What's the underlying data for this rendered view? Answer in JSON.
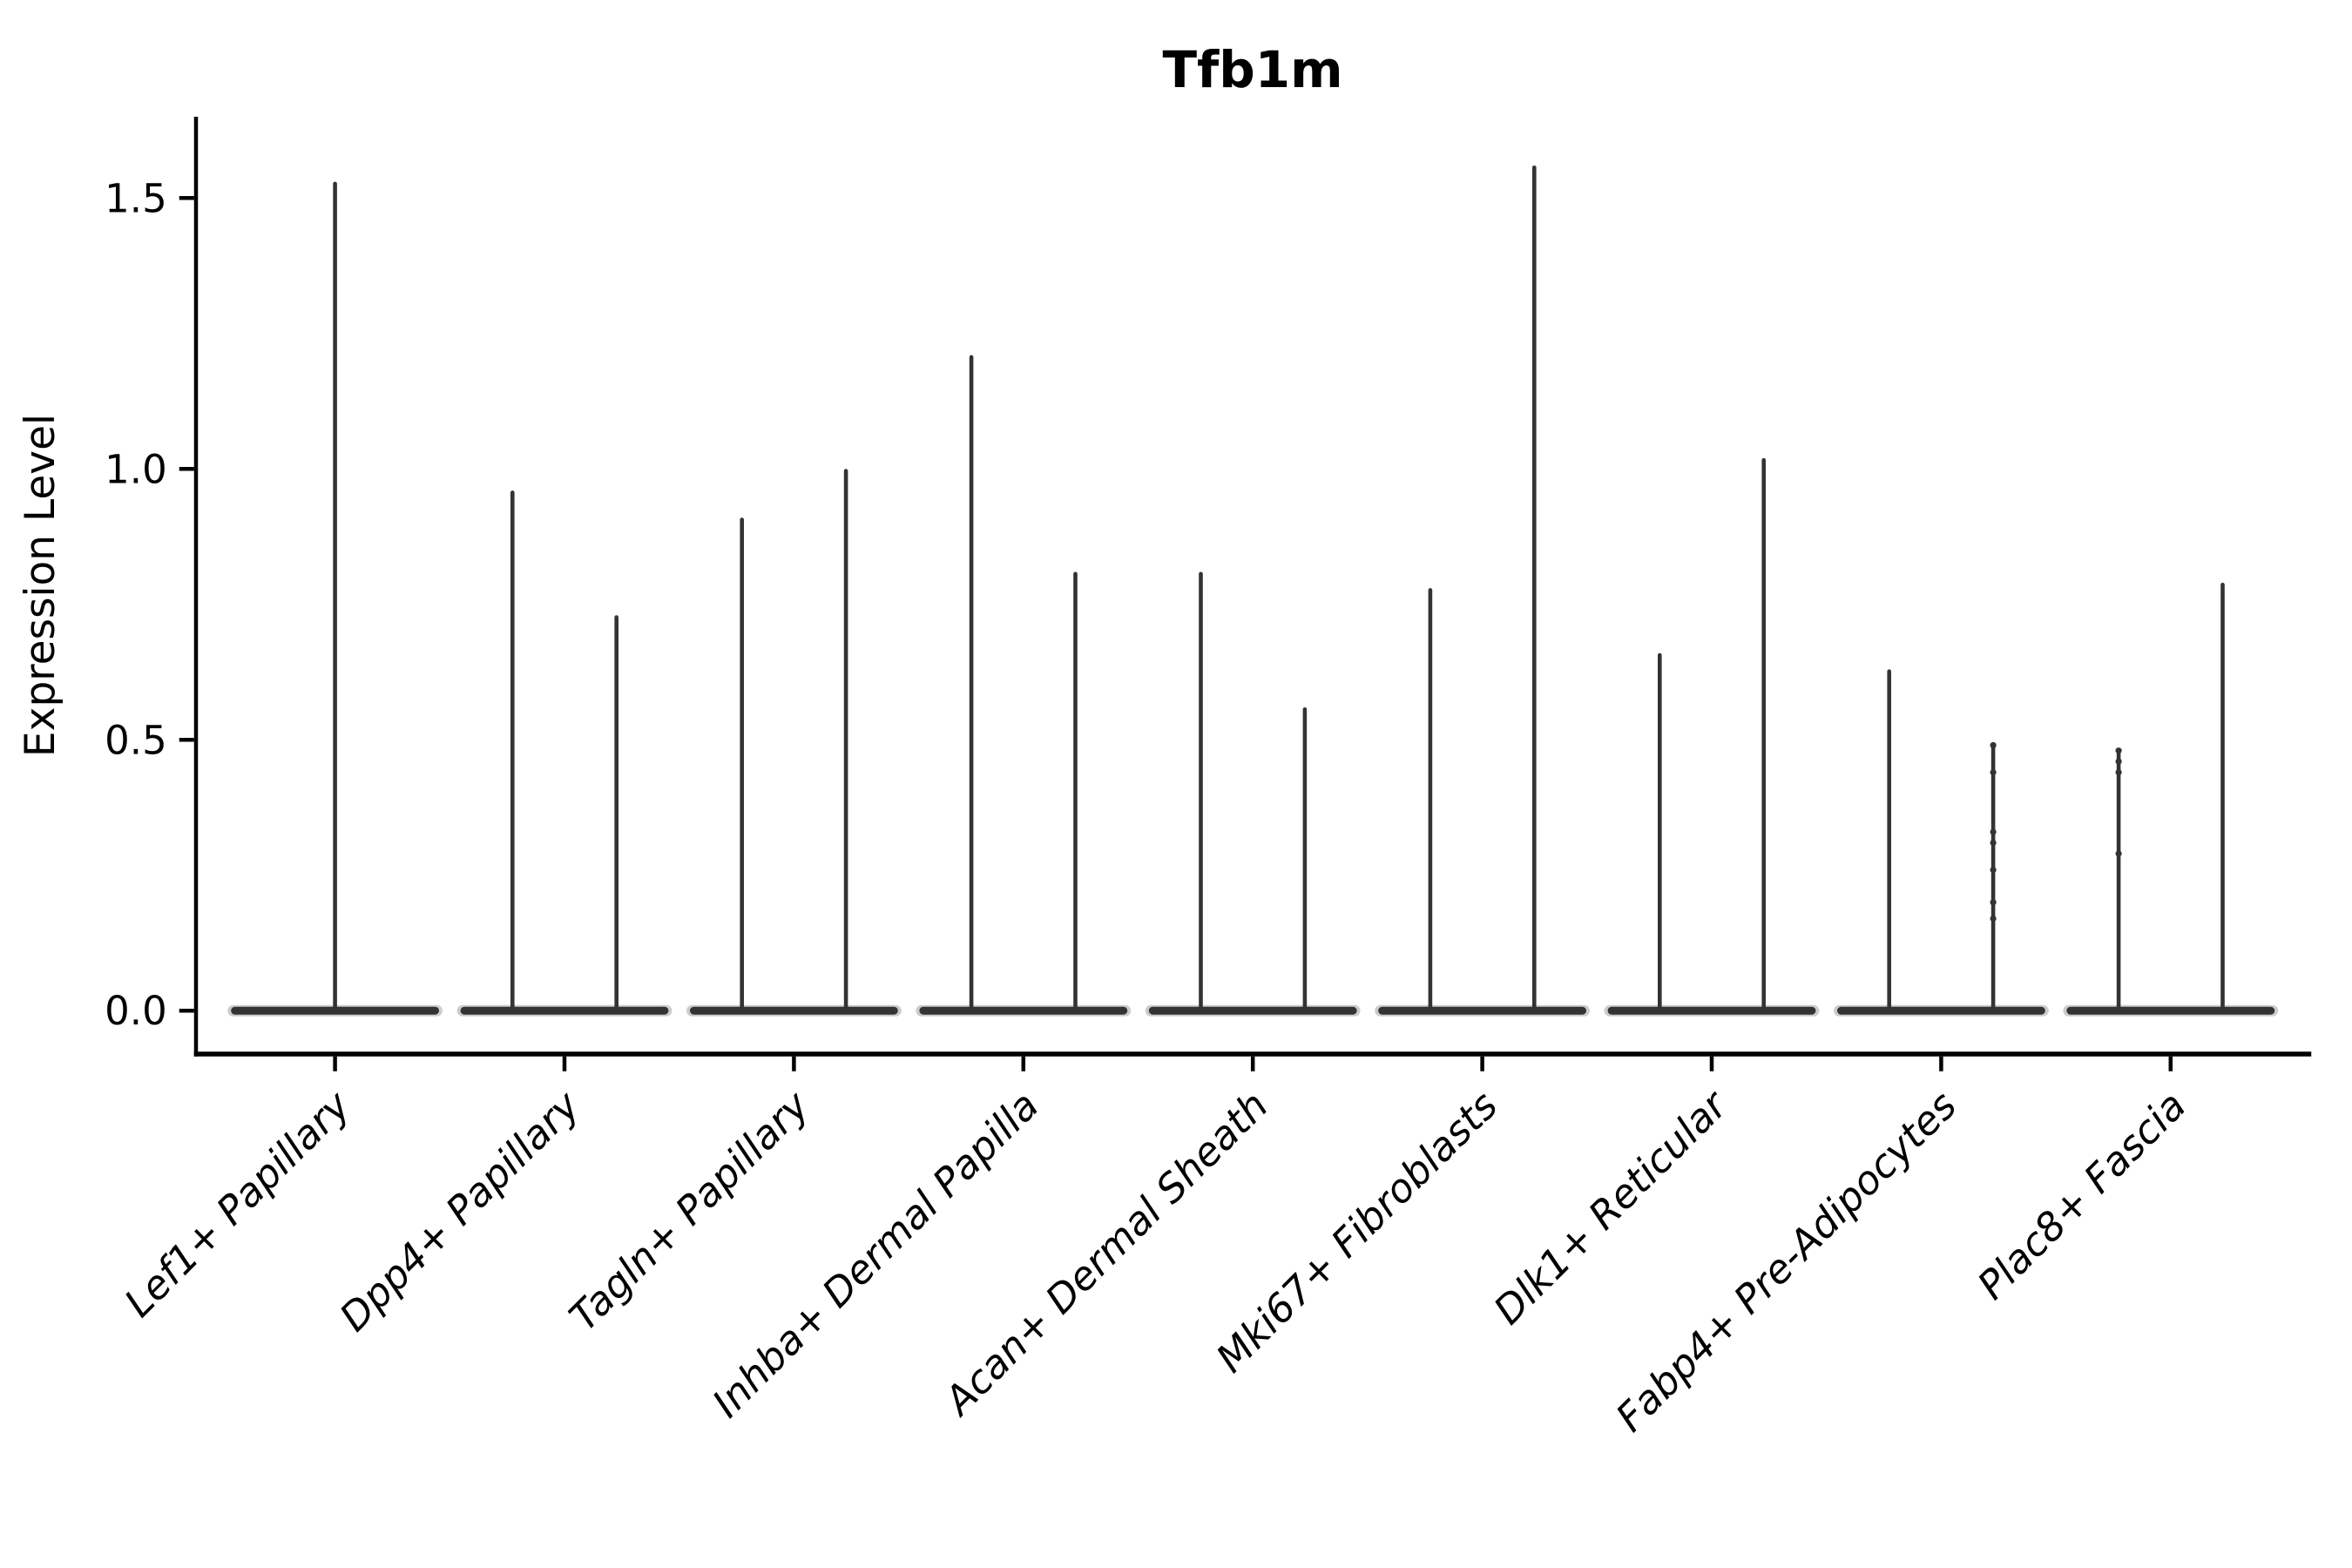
{
  "figure": {
    "background_color": "#ffffff",
    "axis_color": "#000000",
    "text_color": "#000000"
  },
  "chart_data": {
    "type": "violin",
    "title": "Tfb1m",
    "xlabel": "",
    "ylabel": "Expression Level",
    "ylim": [
      -0.08,
      1.65
    ],
    "yticks": [
      0.0,
      0.5,
      1.0,
      1.5
    ],
    "ytick_labels": [
      "0.0",
      "0.5",
      "1.0",
      "1.5"
    ],
    "grid": false,
    "legend": false,
    "x_tick_rotation_deg": 45,
    "violin_color": "#333333",
    "violin_style": "density collapsed at 0 with thin tail to max expression",
    "categories": [
      {
        "label": "Lef1+ Papillary",
        "violins": [
          {
            "max_expression": 1.53,
            "points": []
          }
        ]
      },
      {
        "label": "Dpp4+ Papillary",
        "violins": [
          {
            "max_expression": 0.96,
            "points": []
          },
          {
            "max_expression": 0.73,
            "points": []
          }
        ]
      },
      {
        "label": "Tagln+ Papillary",
        "violins": [
          {
            "max_expression": 0.91,
            "points": []
          },
          {
            "max_expression": 1.0,
            "points": []
          }
        ]
      },
      {
        "label": "Inhba+ Dermal Papilla",
        "violins": [
          {
            "max_expression": 1.21,
            "points": []
          },
          {
            "max_expression": 0.81,
            "points": []
          }
        ]
      },
      {
        "label": "Acan+ Dermal Sheath",
        "violins": [
          {
            "max_expression": 0.81,
            "points": []
          },
          {
            "max_expression": 0.56,
            "points": []
          }
        ]
      },
      {
        "label": "Mki67+ Fibroblasts",
        "violins": [
          {
            "max_expression": 0.78,
            "points": []
          },
          {
            "max_expression": 1.56,
            "points": []
          }
        ]
      },
      {
        "label": "Dlk1+ Reticular",
        "violins": [
          {
            "max_expression": 0.66,
            "points": []
          },
          {
            "max_expression": 1.02,
            "points": []
          }
        ]
      },
      {
        "label": "Fabp4+ Pre-Adipocytes",
        "violins": [
          {
            "max_expression": 0.63,
            "points": []
          },
          {
            "max_expression": 0.49,
            "points": [
              0.49,
              0.44,
              0.33,
              0.31,
              0.26,
              0.2,
              0.17
            ]
          }
        ]
      },
      {
        "label": "Plac8+ Fascia",
        "violins": [
          {
            "max_expression": 0.48,
            "points": [
              0.48,
              0.46,
              0.44,
              0.29
            ]
          },
          {
            "max_expression": 0.79,
            "points": []
          }
        ]
      }
    ]
  }
}
